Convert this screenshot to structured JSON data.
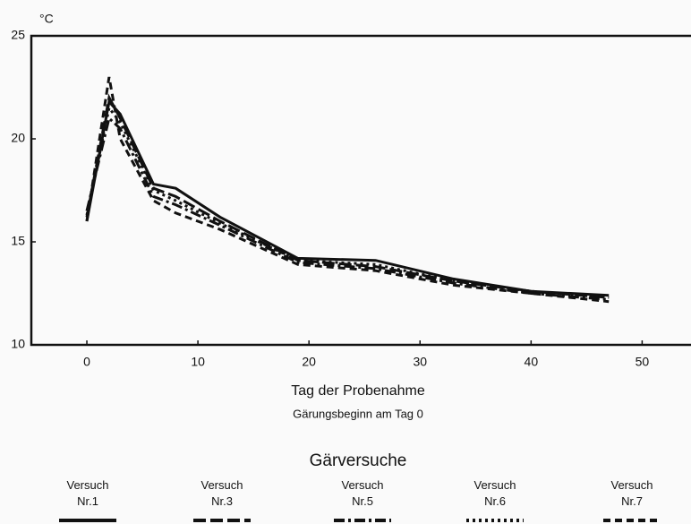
{
  "chart_data": {
    "type": "line",
    "ylabel": "°C",
    "xlabel": "Tag der Probenahme",
    "subtitle": "Gärungsbeginn am Tag 0",
    "legend_title": "Gärversuche",
    "x": [
      0,
      2,
      3,
      6,
      8,
      12,
      19,
      26,
      33,
      40,
      47
    ],
    "series": [
      {
        "name": "Versuch Nr.1",
        "color": "#111111",
        "dash": "none",
        "values": [
          16.0,
          21.8,
          21.2,
          17.8,
          17.6,
          16.2,
          14.2,
          14.1,
          13.2,
          12.6,
          12.4
        ]
      },
      {
        "name": "Versuch Nr.3",
        "color": "#111111",
        "dash": "14 5",
        "values": [
          16.2,
          22.0,
          21.0,
          17.6,
          17.2,
          16.0,
          14.1,
          13.8,
          13.1,
          12.6,
          12.3
        ]
      },
      {
        "name": "Versuch Nr.5",
        "color": "#111111",
        "dash": "12 4 3 4",
        "values": [
          16.5,
          21.0,
          20.5,
          17.2,
          16.8,
          15.8,
          14.0,
          13.7,
          13.0,
          12.5,
          12.2
        ]
      },
      {
        "name": "Versuch Nr.6",
        "color": "#111111",
        "dash": "3 4",
        "values": [
          16.3,
          21.5,
          20.8,
          17.5,
          17.0,
          15.9,
          14.1,
          13.9,
          13.1,
          12.6,
          12.3
        ]
      },
      {
        "name": "Versuch Nr.7",
        "color": "#111111",
        "dash": "8 5",
        "values": [
          16.0,
          23.0,
          20.0,
          17.0,
          16.4,
          15.6,
          13.9,
          13.6,
          12.9,
          12.5,
          12.1
        ]
      }
    ],
    "xlim": [
      -5,
      54.4
    ],
    "xticks": [
      0,
      10,
      20,
      30,
      40,
      50
    ],
    "ylim": [
      10,
      25
    ],
    "yticks": [
      10,
      15,
      20,
      25
    ],
    "grid": false
  }
}
